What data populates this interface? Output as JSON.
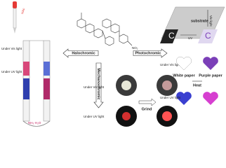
{
  "dropper_label": "HAc",
  "tube": {
    "vis_label": "Under Vis light",
    "uv_label": "Under UV light",
    "base_label": "NH₃·H₂O"
  },
  "arrows": {
    "left": "Halochromic",
    "right": "Photochromic",
    "down": "Mechanochromic"
  },
  "structure": {
    "group": "NO₂"
  },
  "photochromic": {
    "substrate": "substrate",
    "uv": "UV",
    "vis": "Vis light",
    "vis_label": "Under Vis light",
    "white": "White paper",
    "purple": "Purple paper",
    "heat": "Heat",
    "uv_label": "Under UV light"
  },
  "mechano": {
    "vis_label": "Under Vis light",
    "uv_label": "Under UV light",
    "grind": "Grind"
  }
}
